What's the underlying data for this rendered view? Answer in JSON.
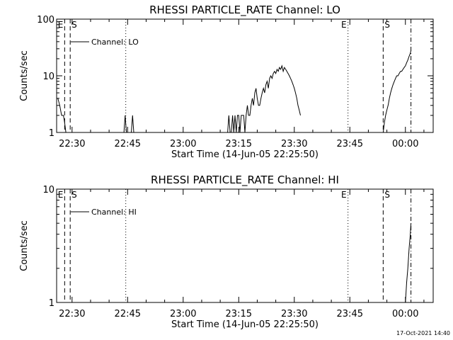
{
  "footer": {
    "timestamp": "17-Oct-2021 14:40"
  },
  "chart_data": [
    {
      "type": "line",
      "title": "RHESSI PARTICLE_RATE Channel: LO",
      "xlabel": "Start Time (14-Jun-05 22:25:50)",
      "ylabel": "Counts/sec",
      "y_scale": "log",
      "ylim": [
        1,
        100
      ],
      "xlim": [
        "22:25:50",
        "00:07:30"
      ],
      "x_tick_labels": [
        "22:30",
        "22:45",
        "23:00",
        "23:15",
        "23:30",
        "23:45",
        "00:00"
      ],
      "y_tick_labels": [
        "1",
        "10",
        "100"
      ],
      "legend": {
        "label": "Channel: LO",
        "position": "top-left"
      },
      "markers": [
        {
          "label": "E",
          "time": "22:28:00",
          "style": "dashed"
        },
        {
          "label": "S",
          "time": "22:29:30",
          "style": "dashed"
        },
        {
          "label": "",
          "time": "22:44:30",
          "style": "dotted"
        },
        {
          "label": "E",
          "time": "23:44:30",
          "style": "dotted"
        },
        {
          "label": "S",
          "time": "23:54:00",
          "style": "dashed"
        },
        {
          "label": "",
          "time": "00:01:30",
          "style": "dashdot"
        }
      ],
      "series": [
        {
          "name": "Channel: LO",
          "segments": [
            [
              [
                "22:26:10",
                4
              ],
              [
                "22:26:40",
                3
              ],
              [
                "22:27:10",
                2
              ],
              [
                "22:27:40",
                2
              ],
              [
                "22:28:00",
                1.5
              ],
              [
                "22:28:20",
                1
              ]
            ],
            [
              [
                "22:44:00",
                1
              ],
              [
                "22:44:20",
                2
              ],
              [
                "22:44:40",
                1
              ]
            ],
            [
              [
                "22:46:00",
                1
              ],
              [
                "22:46:20",
                2
              ],
              [
                "22:46:40",
                1
              ]
            ],
            [
              [
                "23:12:00",
                1
              ],
              [
                "23:12:20",
                2
              ],
              [
                "23:12:40",
                1
              ],
              [
                "23:13:00",
                1
              ],
              [
                "23:13:20",
                2
              ],
              [
                "23:13:40",
                1
              ],
              [
                "23:14:00",
                2
              ],
              [
                "23:14:20",
                1
              ],
              [
                "23:14:40",
                2
              ],
              [
                "23:15:00",
                2
              ],
              [
                "23:15:20",
                1
              ],
              [
                "23:15:40",
                2
              ],
              [
                "23:16:00",
                2
              ],
              [
                "23:16:20",
                2
              ],
              [
                "23:16:40",
                1
              ],
              [
                "23:17:00",
                2
              ],
              [
                "23:17:20",
                3
              ],
              [
                "23:17:40",
                2
              ],
              [
                "23:18:00",
                2
              ],
              [
                "23:18:20",
                3
              ],
              [
                "23:18:40",
                4
              ],
              [
                "23:19:00",
                3
              ],
              [
                "23:19:20",
                5
              ],
              [
                "23:19:40",
                6
              ],
              [
                "23:20:00",
                4
              ],
              [
                "23:20:20",
                3
              ],
              [
                "23:20:40",
                3
              ],
              [
                "23:21:00",
                4
              ],
              [
                "23:21:20",
                5
              ],
              [
                "23:21:40",
                6
              ],
              [
                "23:22:00",
                5
              ],
              [
                "23:22:20",
                7
              ],
              [
                "23:22:40",
                8
              ],
              [
                "23:23:00",
                6
              ],
              [
                "23:23:20",
                9
              ],
              [
                "23:23:40",
                10
              ],
              [
                "23:24:00",
                9
              ],
              [
                "23:24:20",
                11
              ],
              [
                "23:24:40",
                12
              ],
              [
                "23:25:00",
                11
              ],
              [
                "23:25:20",
                13
              ],
              [
                "23:25:40",
                12
              ],
              [
                "23:26:00",
                14
              ],
              [
                "23:26:20",
                13
              ],
              [
                "23:26:40",
                15
              ],
              [
                "23:27:00",
                12
              ],
              [
                "23:27:20",
                14
              ],
              [
                "23:27:40",
                13
              ],
              [
                "23:28:00",
                12
              ],
              [
                "23:28:20",
                11
              ],
              [
                "23:28:40",
                10
              ],
              [
                "23:29:00",
                9
              ],
              [
                "23:29:20",
                8
              ],
              [
                "23:29:40",
                7
              ],
              [
                "23:30:00",
                6
              ],
              [
                "23:30:20",
                5
              ],
              [
                "23:30:40",
                4
              ],
              [
                "23:31:00",
                3
              ],
              [
                "23:31:20",
                2.5
              ],
              [
                "23:31:40",
                2
              ]
            ],
            [
              [
                "23:54:00",
                1
              ],
              [
                "23:54:20",
                1.5
              ],
              [
                "23:54:40",
                2
              ],
              [
                "23:55:00",
                2.5
              ],
              [
                "23:55:20",
                3
              ],
              [
                "23:55:40",
                4
              ],
              [
                "23:56:00",
                5
              ],
              [
                "23:56:20",
                6
              ],
              [
                "23:56:40",
                7
              ],
              [
                "23:57:00",
                8
              ],
              [
                "23:57:20",
                9
              ],
              [
                "23:57:40",
                10
              ],
              [
                "23:58:00",
                10
              ],
              [
                "23:58:20",
                11
              ],
              [
                "23:58:40",
                12
              ],
              [
                "23:59:00",
                12
              ],
              [
                "23:59:20",
                13
              ],
              [
                "23:59:40",
                14
              ],
              [
                "00:00:00",
                15
              ],
              [
                "00:00:20",
                17
              ],
              [
                "00:00:40",
                19
              ],
              [
                "00:01:00",
                22
              ],
              [
                "00:01:20",
                25
              ],
              [
                "00:01:30",
                28
              ]
            ]
          ]
        }
      ]
    },
    {
      "type": "line",
      "title": "RHESSI PARTICLE_RATE Channel: HI",
      "xlabel": "Start Time (14-Jun-05 22:25:50)",
      "ylabel": "Counts/sec",
      "y_scale": "log",
      "ylim": [
        1,
        10
      ],
      "xlim": [
        "22:25:50",
        "00:07:30"
      ],
      "x_tick_labels": [
        "22:30",
        "22:45",
        "23:00",
        "23:15",
        "23:30",
        "23:45",
        "00:00"
      ],
      "y_tick_labels": [
        "1",
        "10"
      ],
      "legend": {
        "label": "Channel: HI",
        "position": "top-left"
      },
      "markers": [
        {
          "label": "E",
          "time": "22:28:00",
          "style": "dashed"
        },
        {
          "label": "S",
          "time": "22:29:30",
          "style": "dashed"
        },
        {
          "label": "",
          "time": "22:44:30",
          "style": "dotted"
        },
        {
          "label": "E",
          "time": "23:44:30",
          "style": "dotted"
        },
        {
          "label": "S",
          "time": "23:54:00",
          "style": "dashed"
        },
        {
          "label": "",
          "time": "00:01:30",
          "style": "dashdot"
        }
      ],
      "series": [
        {
          "name": "Channel: HI",
          "segments": [
            [
              [
                "00:00:00",
                1
              ],
              [
                "00:00:20",
                1.5
              ],
              [
                "00:00:40",
                2
              ],
              [
                "00:01:00",
                3
              ],
              [
                "00:01:20",
                4
              ],
              [
                "00:01:30",
                5
              ]
            ]
          ]
        }
      ]
    }
  ]
}
